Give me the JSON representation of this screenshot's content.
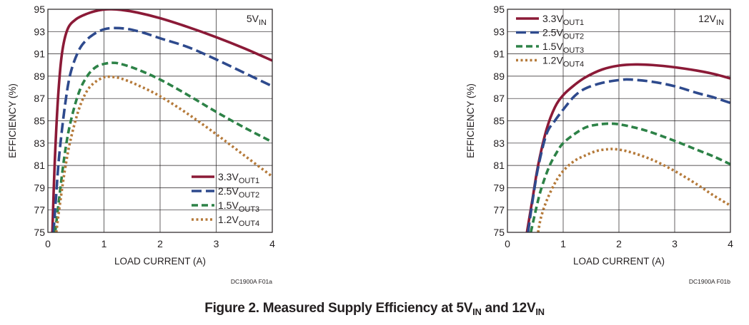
{
  "caption": {
    "prefix": "Figure 2. Measured Supply Efficiency at 5V",
    "sub1": "IN",
    "middle": " and 12V",
    "sub2": "IN"
  },
  "chart_data": [
    {
      "type": "line",
      "id": "a",
      "inset_label": {
        "main": "5V",
        "sub": "IN"
      },
      "xlabel": "LOAD CURRENT (A)",
      "ylabel": "EFFICIENCY (%)",
      "xlim": [
        0,
        4
      ],
      "ylim": [
        75,
        95
      ],
      "xticks": [
        0,
        1,
        2,
        3,
        4
      ],
      "yticks": [
        75,
        77,
        79,
        81,
        83,
        85,
        87,
        89,
        91,
        93,
        95
      ],
      "figure_code": "DC1900A F01a",
      "legend_position": "bottom-right",
      "series": [
        {
          "name": "3.3V",
          "sub": "OUT1",
          "color": "#8b1a37",
          "dash": "solid",
          "x": [
            0.08,
            0.12,
            0.18,
            0.25,
            0.35,
            0.5,
            0.7,
            0.9,
            1.1,
            1.3,
            1.6,
            2.0,
            2.5,
            3.0,
            3.5,
            4.0
          ],
          "y": [
            75,
            81,
            87,
            91,
            93.2,
            94.1,
            94.6,
            94.9,
            95.0,
            94.95,
            94.7,
            94.2,
            93.4,
            92.5,
            91.5,
            90.4
          ]
        },
        {
          "name": "2.5V",
          "sub": "OUT2",
          "color": "#2e4a8d",
          "dash": "longdash",
          "x": [
            0.1,
            0.15,
            0.2,
            0.3,
            0.4,
            0.55,
            0.7,
            0.9,
            1.1,
            1.4,
            1.7,
            2.0,
            2.5,
            3.0,
            3.5,
            4.0
          ],
          "y": [
            75,
            78.5,
            81.8,
            86.2,
            89.2,
            91.3,
            92.3,
            93.0,
            93.3,
            93.25,
            92.9,
            92.4,
            91.6,
            90.5,
            89.3,
            88.1
          ]
        },
        {
          "name": "1.5V",
          "sub": "OUT3",
          "color": "#2d8247",
          "dash": "dash",
          "x": [
            0.13,
            0.2,
            0.3,
            0.4,
            0.55,
            0.7,
            0.85,
            1.0,
            1.15,
            1.3,
            1.6,
            2.0,
            2.5,
            3.0,
            3.5,
            4.0
          ],
          "y": [
            75,
            78,
            82,
            84.8,
            87.5,
            89,
            89.8,
            90.1,
            90.2,
            90.1,
            89.6,
            88.7,
            87.3,
            85.8,
            84.4,
            83.1
          ]
        },
        {
          "name": "1.2V",
          "sub": "OUT4",
          "color": "#b57a3a",
          "dash": "dot",
          "x": [
            0.15,
            0.2,
            0.3,
            0.4,
            0.55,
            0.7,
            0.85,
            1.0,
            1.1,
            1.3,
            1.6,
            2.0,
            2.5,
            3.0,
            3.5,
            4.0
          ],
          "y": [
            75,
            77,
            80.5,
            83.2,
            86,
            87.7,
            88.5,
            88.9,
            88.95,
            88.8,
            88.2,
            87.2,
            85.6,
            83.8,
            81.9,
            80
          ]
        }
      ]
    },
    {
      "type": "line",
      "id": "b",
      "inset_label": {
        "main": "12V",
        "sub": "IN"
      },
      "xlabel": "LOAD CURRENT (A)",
      "ylabel": "EFFICIENCY (%)",
      "xlim": [
        0,
        4
      ],
      "ylim": [
        75,
        95
      ],
      "xticks": [
        0,
        1,
        2,
        3,
        4
      ],
      "yticks": [
        75,
        77,
        79,
        81,
        83,
        85,
        87,
        89,
        91,
        93,
        95
      ],
      "figure_code": "DC1900A F01b",
      "legend_position": "top-left",
      "series": [
        {
          "name": "3.3V",
          "sub": "OUT1",
          "color": "#8b1a37",
          "dash": "solid",
          "x": [
            0.35,
            0.45,
            0.55,
            0.7,
            0.85,
            1.0,
            1.2,
            1.4,
            1.7,
            2.0,
            2.3,
            2.6,
            3.0,
            3.4,
            3.7,
            4.0
          ],
          "y": [
            75,
            78,
            81,
            84.2,
            86.2,
            87.3,
            88.2,
            88.9,
            89.6,
            89.95,
            90.05,
            90.0,
            89.8,
            89.5,
            89.2,
            88.8
          ]
        },
        {
          "name": "2.5V",
          "sub": "OUT2",
          "color": "#2e4a8d",
          "dash": "longdash",
          "x": [
            0.37,
            0.45,
            0.55,
            0.7,
            0.85,
            1.0,
            1.2,
            1.4,
            1.7,
            2.0,
            2.2,
            2.6,
            3.0,
            3.4,
            3.7,
            4.0
          ],
          "y": [
            75,
            77.8,
            80.8,
            83.8,
            85.0,
            86.0,
            87.2,
            87.9,
            88.4,
            88.65,
            88.7,
            88.5,
            88.1,
            87.5,
            87.1,
            86.6
          ]
        },
        {
          "name": "1.5V",
          "sub": "OUT3",
          "color": "#2d8247",
          "dash": "dash",
          "x": [
            0.42,
            0.5,
            0.6,
            0.75,
            0.9,
            1.0,
            1.2,
            1.4,
            1.6,
            1.85,
            2.1,
            2.5,
            3.0,
            3.4,
            3.7,
            4.0
          ],
          "y": [
            75,
            76.8,
            78.8,
            80.9,
            82.3,
            83.0,
            83.8,
            84.4,
            84.65,
            84.75,
            84.6,
            84.1,
            83.2,
            82.4,
            81.8,
            81.1
          ]
        },
        {
          "name": "1.2V",
          "sub": "OUT4",
          "color": "#b57a3a",
          "dash": "dot",
          "x": [
            0.55,
            0.6,
            0.7,
            0.85,
            1.0,
            1.2,
            1.4,
            1.6,
            1.8,
            1.95,
            2.2,
            2.6,
            3.0,
            3.4,
            3.7,
            4.0
          ],
          "y": [
            75,
            76.3,
            77.8,
            79.4,
            80.5,
            81.4,
            81.9,
            82.3,
            82.45,
            82.45,
            82.2,
            81.5,
            80.5,
            79.3,
            78.3,
            77.4
          ]
        }
      ]
    }
  ]
}
